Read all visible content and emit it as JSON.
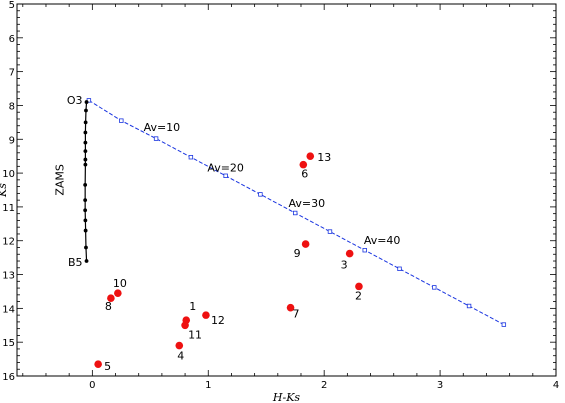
{
  "chart_data": {
    "type": "scatter",
    "xlabel": "H-Ks",
    "ylabel": "Ks",
    "xlim": [
      -0.65,
      4.0
    ],
    "ylim": [
      16.0,
      5.0
    ],
    "y_inverted": true,
    "x_ticks": [
      0,
      1,
      2,
      3,
      4
    ],
    "y_ticks": [
      5,
      6,
      7,
      8,
      9,
      10,
      11,
      12,
      13,
      14,
      15,
      16
    ],
    "grid": false,
    "legend": "none",
    "colors": {
      "zams": "#000000",
      "reddening": "#1a35e0",
      "sources": "#ee1111"
    },
    "zams": {
      "name": "ZAMS",
      "top_label": "O3",
      "bottom_label": "B5",
      "x": [
        -0.05,
        -0.055,
        -0.058,
        -0.06,
        -0.06,
        -0.06,
        -0.06,
        -0.06,
        -0.062,
        -0.062,
        -0.062,
        -0.06,
        -0.058,
        -0.055,
        -0.05
      ],
      "y": [
        7.9,
        8.15,
        8.5,
        8.8,
        9.1,
        9.35,
        9.6,
        9.75,
        10.35,
        10.8,
        11.1,
        11.4,
        11.7,
        12.2,
        12.6
      ]
    },
    "reddening_vector": {
      "x": [
        -0.03,
        0.25,
        0.55,
        0.85,
        1.15,
        1.45,
        1.75,
        2.05,
        2.35,
        2.65,
        2.95,
        3.25,
        3.55
      ],
      "y": [
        7.85,
        8.45,
        8.98,
        9.53,
        10.08,
        10.63,
        11.18,
        11.73,
        12.28,
        12.83,
        13.38,
        13.93,
        14.48
      ],
      "annotations": [
        {
          "label": "Av=10",
          "x": 0.6,
          "y": 8.75
        },
        {
          "label": "Av=20",
          "x": 1.15,
          "y": 9.95
        },
        {
          "label": "Av=30",
          "x": 1.85,
          "y": 11.0
        },
        {
          "label": "Av=40",
          "x": 2.5,
          "y": 12.1
        }
      ]
    },
    "sources": [
      {
        "label": "1",
        "x": 0.81,
        "y": 14.35
      },
      {
        "label": "2",
        "x": 2.3,
        "y": 13.35
      },
      {
        "label": "3",
        "x": 2.22,
        "y": 12.38
      },
      {
        "label": "4",
        "x": 0.75,
        "y": 15.1
      },
      {
        "label": "5",
        "x": 0.05,
        "y": 15.65
      },
      {
        "label": "6",
        "x": 1.82,
        "y": 9.75
      },
      {
        "label": "7",
        "x": 1.71,
        "y": 13.98
      },
      {
        "label": "8",
        "x": 0.16,
        "y": 13.7
      },
      {
        "label": "9",
        "x": 1.84,
        "y": 12.1
      },
      {
        "label": "10",
        "x": 0.22,
        "y": 13.55
      },
      {
        "label": "11",
        "x": 0.8,
        "y": 14.5
      },
      {
        "label": "12",
        "x": 0.98,
        "y": 14.2
      },
      {
        "label": "13",
        "x": 1.88,
        "y": 9.5
      }
    ]
  }
}
